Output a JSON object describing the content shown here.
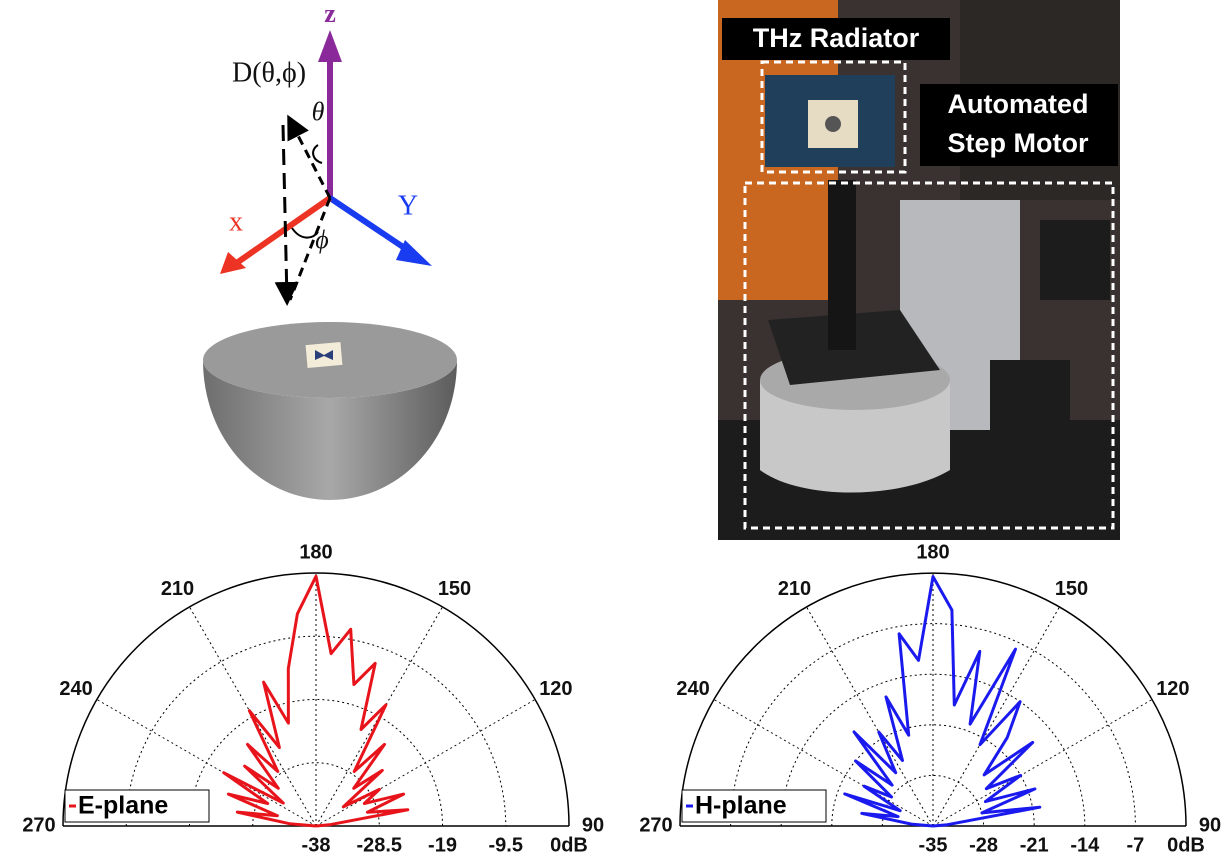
{
  "diagram": {
    "z_label": "z",
    "d_label": "D(θ,ϕ)",
    "theta_label": "θ",
    "y_label": "Y",
    "x_label": "x",
    "phi_label": "ϕ"
  },
  "photo": {
    "radiator_label": "THz Radiator",
    "motor_label": [
      "Automated",
      "Step Motor"
    ]
  },
  "chart_data": [
    {
      "type": "polar",
      "x": [
        90,
        95,
        100,
        105,
        110,
        115,
        120,
        125,
        130,
        135,
        140,
        145,
        150,
        155,
        160,
        165,
        170,
        175,
        180,
        185,
        190,
        195,
        200,
        205,
        210,
        215,
        220,
        225,
        230,
        235,
        240,
        245,
        250,
        255,
        260,
        265,
        270
      ],
      "series": [
        {
          "name": "E-plane",
          "color": "#e8141b",
          "values": [
            -38,
            -36,
            -24,
            -30,
            -24,
            -30,
            -27,
            -33,
            -25,
            -30,
            -22,
            -28,
            -17,
            -22,
            -12,
            -16,
            -8,
            -12,
            -0.5,
            -6,
            -14,
            -22,
            -15,
            -25,
            -18,
            -28,
            -22,
            -30,
            -24,
            -32,
            -22,
            -30,
            -24,
            -32,
            -26,
            -34,
            -38
          ]
        }
      ],
      "xlim": [
        90,
        270
      ],
      "xticks": [
        90,
        120,
        150,
        180,
        210,
        240,
        270
      ],
      "ylim": [
        -38,
        0
      ],
      "yticks": [
        -38,
        -28.5,
        -19,
        -9.5,
        {
          "value": 0,
          "label": "0dB"
        }
      ],
      "grid": true,
      "legend": "lower left"
    },
    {
      "type": "polar",
      "x": [
        90,
        95,
        100,
        105,
        110,
        115,
        120,
        125,
        130,
        135,
        140,
        145,
        150,
        155,
        160,
        165,
        170,
        175,
        180,
        185,
        190,
        195,
        200,
        205,
        210,
        215,
        220,
        225,
        230,
        235,
        240,
        245,
        250,
        255,
        260,
        265,
        270
      ],
      "series": [
        {
          "name": "H-plane",
          "color": "#1a1aef",
          "values": [
            -35,
            -33,
            -20,
            -28,
            -20,
            -27,
            -21,
            -26,
            -17,
            -25,
            -19,
            -14,
            -22,
            -8,
            -20,
            -10,
            -18,
            -5,
            -0.5,
            -12,
            -8,
            -22,
            -16,
            -25,
            -20,
            -26,
            -18,
            -27,
            -21,
            -28,
            -24,
            -30,
            -22,
            -30,
            -25,
            -32,
            -35
          ]
        }
      ],
      "xlim": [
        90,
        270
      ],
      "xticks": [
        90,
        120,
        150,
        180,
        210,
        240,
        270
      ],
      "ylim": [
        -35,
        0
      ],
      "yticks": [
        -35,
        -28,
        -21,
        -14,
        -7,
        {
          "value": 0,
          "label": "0dB"
        }
      ],
      "grid": true,
      "legend": "lower left"
    }
  ]
}
